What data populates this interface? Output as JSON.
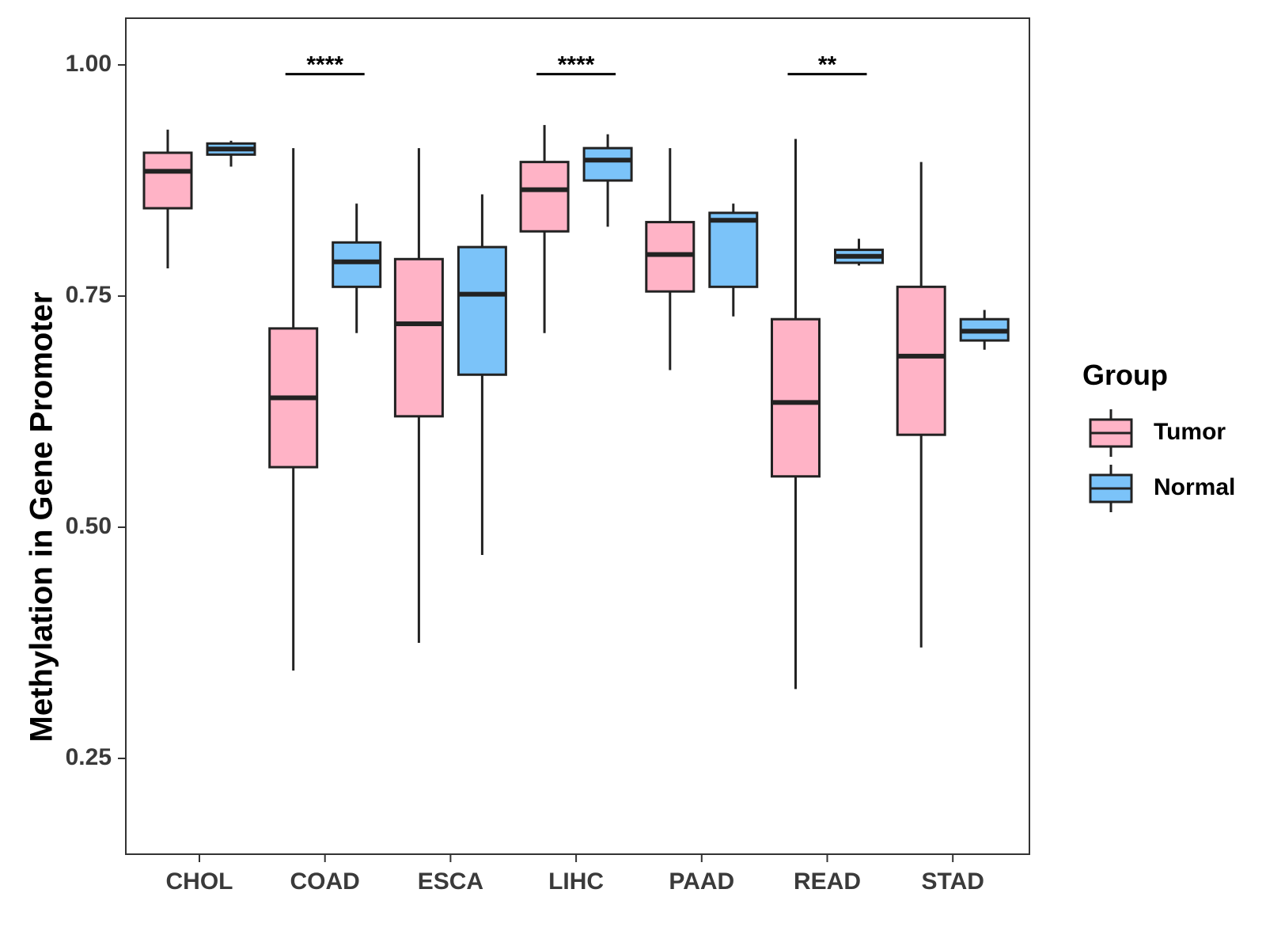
{
  "chart_data": {
    "type": "box",
    "title": "",
    "xlabel": "",
    "ylabel": "Methylation in Gene Promoter",
    "ylim": [
      0.15,
      1.05
    ],
    "yticks": [
      0.25,
      0.5,
      0.75,
      1.0
    ],
    "ytick_labels": [
      "0.25",
      "0.50",
      "0.75",
      "1.00"
    ],
    "categories": [
      "CHOL",
      "COAD",
      "ESCA",
      "LIHC",
      "PAAD",
      "READ",
      "STAD"
    ],
    "legend": {
      "title": "Group",
      "position": "right",
      "entries": [
        "Tumor",
        "Normal"
      ]
    },
    "colors": {
      "Tumor": "#FFB3C6",
      "Normal": "#7BC3F9",
      "stroke": "#222222"
    },
    "series": [
      {
        "name": "Tumor",
        "boxes": [
          {
            "category": "CHOL",
            "min": 0.78,
            "q1": 0.845,
            "median": 0.885,
            "q3": 0.905,
            "max": 0.93
          },
          {
            "category": "COAD",
            "min": 0.345,
            "q1": 0.565,
            "median": 0.64,
            "q3": 0.715,
            "max": 0.91
          },
          {
            "category": "ESCA",
            "min": 0.375,
            "q1": 0.62,
            "median": 0.72,
            "q3": 0.79,
            "max": 0.91
          },
          {
            "category": "LIHC",
            "min": 0.71,
            "q1": 0.82,
            "median": 0.865,
            "q3": 0.895,
            "max": 0.935
          },
          {
            "category": "PAAD",
            "min": 0.67,
            "q1": 0.755,
            "median": 0.795,
            "q3": 0.83,
            "max": 0.91
          },
          {
            "category": "READ",
            "min": 0.325,
            "q1": 0.555,
            "median": 0.635,
            "q3": 0.725,
            "max": 0.92
          },
          {
            "category": "STAD",
            "min": 0.37,
            "q1": 0.6,
            "median": 0.685,
            "q3": 0.76,
            "max": 0.895
          }
        ]
      },
      {
        "name": "Normal",
        "boxes": [
          {
            "category": "CHOL",
            "min": 0.89,
            "q1": 0.903,
            "median": 0.909,
            "q3": 0.915,
            "max": 0.918
          },
          {
            "category": "COAD",
            "min": 0.71,
            "q1": 0.76,
            "median": 0.787,
            "q3": 0.808,
            "max": 0.85
          },
          {
            "category": "ESCA",
            "min": 0.47,
            "q1": 0.665,
            "median": 0.752,
            "q3": 0.803,
            "max": 0.86
          },
          {
            "category": "LIHC",
            "min": 0.825,
            "q1": 0.875,
            "median": 0.897,
            "q3": 0.91,
            "max": 0.925
          },
          {
            "category": "PAAD",
            "min": 0.728,
            "q1": 0.76,
            "median": 0.832,
            "q3": 0.84,
            "max": 0.85
          },
          {
            "category": "READ",
            "min": 0.783,
            "q1": 0.786,
            "median": 0.793,
            "q3": 0.8,
            "max": 0.812
          },
          {
            "category": "STAD",
            "min": 0.692,
            "q1": 0.702,
            "median": 0.712,
            "q3": 0.725,
            "max": 0.735
          }
        ]
      }
    ],
    "annotations": [
      {
        "category": "COAD",
        "label": "****",
        "y": 0.99
      },
      {
        "category": "LIHC",
        "label": "****",
        "y": 0.99
      },
      {
        "category": "READ",
        "label": "**",
        "y": 0.99
      }
    ]
  }
}
